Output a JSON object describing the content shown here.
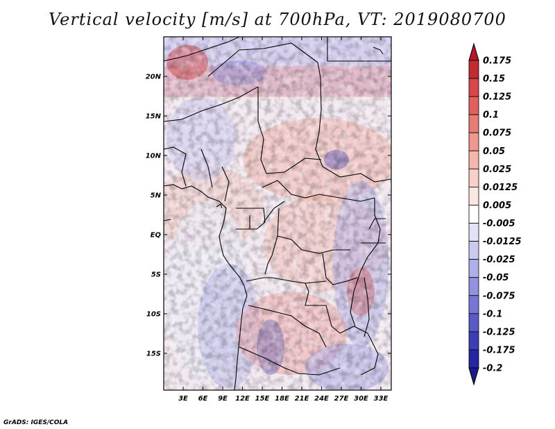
{
  "title": "Vertical velocity [m/s] at 700hPa, VT: 2019080700",
  "credit": "GrADS: IGES/COLA",
  "map": {
    "variable": "Vertical velocity",
    "units": "m/s",
    "level": "700hPa",
    "valid_time": "2019080700",
    "lat_ticks": [
      "20N",
      "15N",
      "10N",
      "5N",
      "EQ",
      "5S",
      "10S",
      "15S"
    ],
    "lon_ticks": [
      "3E",
      "6E",
      "9E",
      "12E",
      "15E",
      "18E",
      "21E",
      "24E",
      "27E",
      "30E",
      "33E"
    ]
  },
  "colorbar": {
    "labels": [
      "0.175",
      "0.15",
      "0.125",
      "0.1",
      "0.075",
      "0.05",
      "0.025",
      "0.0125",
      "0.005",
      "-0.005",
      "-0.0125",
      "-0.025",
      "-0.05",
      "-0.075",
      "-0.1",
      "-0.125",
      "-0.175",
      "-0.2"
    ],
    "colors": [
      "#b2182b",
      "#c32b33",
      "#d6464a",
      "#e05f5f",
      "#e87b76",
      "#ef9891",
      "#f4b5ad",
      "#f8cfc9",
      "#fce6e2",
      "#ffffff",
      "#e2e2f6",
      "#cacaf0",
      "#afafe9",
      "#9292e0",
      "#7676d4",
      "#5a5ac6",
      "#3d3db5",
      "#2626a0",
      "#1a1a8a"
    ]
  }
}
